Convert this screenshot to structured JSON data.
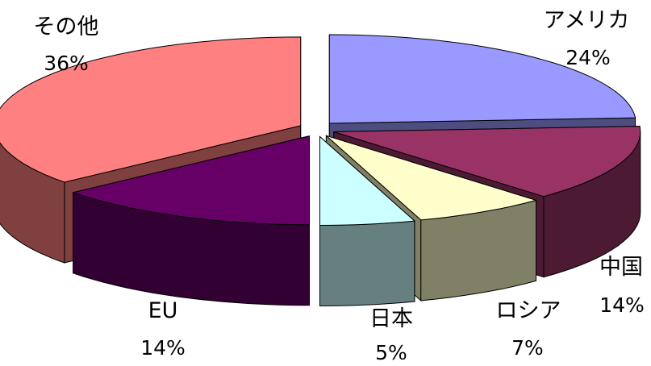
{
  "chart_data": {
    "type": "pie",
    "title": "",
    "categories": [
      "アメリカ",
      "中国",
      "ロシア",
      "日本",
      "EU",
      "その他"
    ],
    "values": [
      24,
      14,
      7,
      5,
      14,
      36
    ],
    "labels": [
      {
        "name": "アメリカ",
        "value": "24%"
      },
      {
        "name": "中国",
        "value": "14%"
      },
      {
        "name": "ロシア",
        "value": "7%"
      },
      {
        "name": "日本",
        "value": "5%"
      },
      {
        "name": "EU",
        "value": "14%"
      },
      {
        "name": "その他",
        "value": "36%"
      }
    ],
    "colors": {
      "top": [
        "#9999ff",
        "#993366",
        "#ffffcc",
        "#ccffff",
        "#660066",
        "#ff8080"
      ],
      "side": [
        "#4d4d80",
        "#4d1a33",
        "#808066",
        "#668080",
        "#330033",
        "#804040"
      ]
    },
    "style": "3d-exploded-pie",
    "legend": "none"
  }
}
